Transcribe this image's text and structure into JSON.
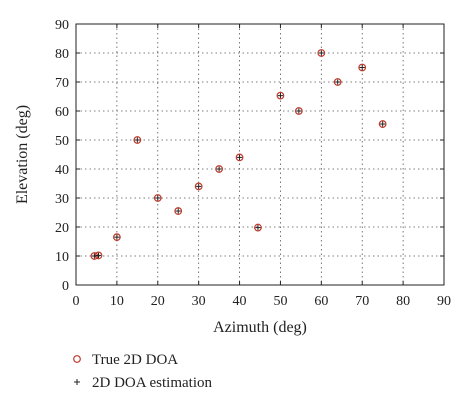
{
  "chart_data": {
    "type": "scatter",
    "title": "",
    "xlabel": "Azimuth (deg)",
    "ylabel": "Elevation (deg)",
    "xlim": [
      0,
      90
    ],
    "ylim": [
      0,
      90
    ],
    "xticks": [
      0,
      10,
      20,
      30,
      40,
      50,
      60,
      70,
      80,
      90
    ],
    "yticks": [
      0,
      10,
      20,
      30,
      40,
      50,
      60,
      70,
      80,
      90
    ],
    "grid": true,
    "legend_position": "below",
    "series": [
      {
        "name": "True 2D DOA",
        "marker": "circle",
        "color": "#c0392b",
        "points": [
          [
            4.5,
            10
          ],
          [
            5.5,
            10.2
          ],
          [
            10,
            16.5
          ],
          [
            15,
            50
          ],
          [
            20,
            30
          ],
          [
            25,
            25.5
          ],
          [
            30,
            34
          ],
          [
            35,
            40
          ],
          [
            40,
            44
          ],
          [
            44.5,
            19.8
          ],
          [
            50,
            65.3
          ],
          [
            54.5,
            60
          ],
          [
            60,
            80
          ],
          [
            64,
            70
          ],
          [
            70,
            75
          ],
          [
            75,
            55.5
          ]
        ]
      },
      {
        "name": "2D DOA estimation",
        "marker": "plus",
        "color": "#222222",
        "points": [
          [
            4.5,
            10
          ],
          [
            5.5,
            10.2
          ],
          [
            10,
            16.5
          ],
          [
            15,
            50
          ],
          [
            20,
            30
          ],
          [
            25,
            25.5
          ],
          [
            30,
            34
          ],
          [
            35,
            40
          ],
          [
            40,
            44
          ],
          [
            44.5,
            19.8
          ],
          [
            50,
            65.3
          ],
          [
            54.5,
            60
          ],
          [
            60,
            80
          ],
          [
            64,
            70
          ],
          [
            70,
            75
          ],
          [
            75,
            55.5
          ]
        ]
      }
    ]
  }
}
